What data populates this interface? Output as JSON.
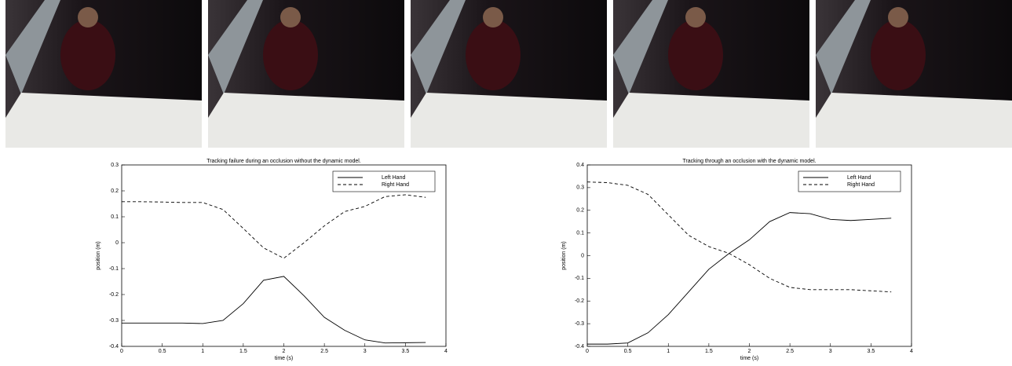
{
  "chart_data": [
    {
      "type": "line",
      "title": "Tracking failure during an occlusion without the dynamic model.",
      "xlabel": "time (s)",
      "ylabel": "position (m)",
      "x": [
        0,
        0.25,
        0.5,
        0.75,
        1,
        1.25,
        1.5,
        1.75,
        2,
        2.25,
        2.5,
        2.75,
        3,
        3.25,
        3.5,
        3.75
      ],
      "series": [
        {
          "name": "Left Hand",
          "color": "#000000",
          "dash": "solid",
          "values": [
            -0.31,
            -0.31,
            -0.31,
            -0.31,
            -0.312,
            -0.3,
            -0.235,
            -0.145,
            -0.13,
            -0.205,
            -0.288,
            -0.338,
            -0.375,
            -0.387,
            -0.386,
            -0.385
          ]
        },
        {
          "name": "Right Hand",
          "color": "#000000",
          "dash": "dashed",
          "values": [
            0.158,
            0.158,
            0.157,
            0.155,
            0.155,
            0.128,
            0.055,
            -0.02,
            -0.06,
            0.0,
            0.065,
            0.12,
            0.14,
            0.178,
            0.185,
            0.175
          ]
        }
      ],
      "xlim": [
        0,
        4
      ],
      "xticks": [
        0,
        0.5,
        1,
        1.5,
        2,
        2.5,
        3,
        3.5,
        4
      ],
      "ylim": [
        -0.4,
        0.3
      ],
      "yticks": [
        -0.4,
        -0.3,
        -0.2,
        -0.1,
        0,
        0.1,
        0.2,
        0.3
      ],
      "legend": "upper-right",
      "grid": false
    },
    {
      "type": "line",
      "title": "Tracking through an occlusion with the dynamic model.",
      "xlabel": "time (s)",
      "ylabel": "position (m)",
      "x": [
        0,
        0.25,
        0.5,
        0.75,
        1,
        1.25,
        1.5,
        1.75,
        2,
        2.25,
        2.5,
        2.75,
        3,
        3.25,
        3.5,
        3.75
      ],
      "series": [
        {
          "name": "Left Hand",
          "color": "#000000",
          "dash": "solid",
          "values": [
            -0.39,
            -0.39,
            -0.385,
            -0.34,
            -0.26,
            -0.16,
            -0.06,
            0.01,
            0.07,
            0.15,
            0.19,
            0.185,
            0.16,
            0.155,
            0.16,
            0.165
          ]
        },
        {
          "name": "Right Hand",
          "color": "#000000",
          "dash": "dashed",
          "values": [
            0.325,
            0.322,
            0.31,
            0.27,
            0.18,
            0.09,
            0.04,
            0.01,
            -0.04,
            -0.1,
            -0.14,
            -0.15,
            -0.15,
            -0.15,
            -0.155,
            -0.16
          ]
        }
      ],
      "xlim": [
        0,
        4
      ],
      "xticks": [
        0,
        0.5,
        1,
        1.5,
        2,
        2.5,
        3,
        3.5,
        4
      ],
      "ylim": [
        -0.4,
        0.4
      ],
      "yticks": [
        -0.4,
        -0.3,
        -0.2,
        -0.1,
        0,
        0.1,
        0.2,
        0.3,
        0.4
      ],
      "legend": "upper-right",
      "grid": false
    }
  ]
}
